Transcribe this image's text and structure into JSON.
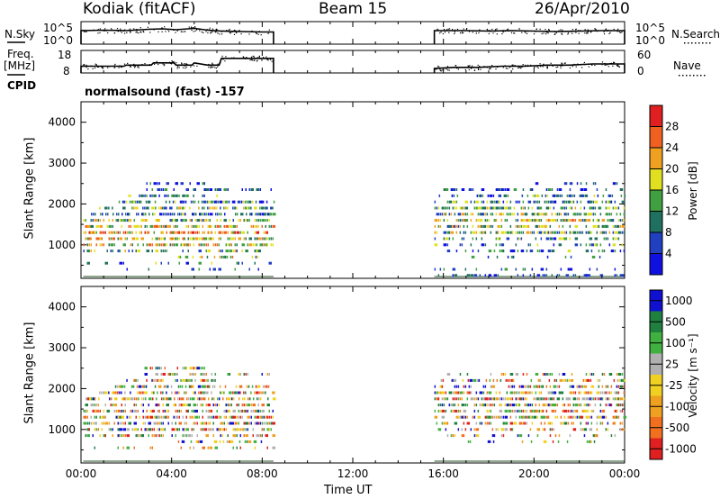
{
  "header": {
    "site": "Kodiak (fitACF)",
    "beam": "Beam 15",
    "date": "26/Apr/2010"
  },
  "labels": {
    "nsky": "N.Sky",
    "nsearch": "N.Search",
    "freq": "Freq.",
    "freq_unit": "[MHz]",
    "nave": "Nave",
    "cpid": "CPID",
    "cpid_value": "normalsound (fast) -157",
    "slant_range_power": "Slant Range [km]",
    "slant_range_velocity": "Slant Range [km]",
    "xlabel": "Time UT",
    "power_cbar_title": "Power [dB]",
    "velocity_cbar_title": "Velocity [m s⁻¹]"
  },
  "ticks": {
    "noise_left": [
      "10^5",
      "10^0"
    ],
    "noise_right": [
      "10^5",
      "10^0"
    ],
    "freq_left": [
      "18",
      "8"
    ],
    "nave_right": [
      "60",
      "0"
    ],
    "range": [
      "1000",
      "2000",
      "3000",
      "4000"
    ],
    "time": [
      "00:00",
      "04:00",
      "08:00",
      "12:00",
      "16:00",
      "20:00",
      "00:00"
    ]
  },
  "chart_data": [
    {
      "type": "line",
      "panel": "noise",
      "series": [
        {
          "name": "N.Sky",
          "x_hours": [
            0,
            1,
            2,
            3,
            3.6,
            4.2,
            5.0,
            5.6,
            6.2,
            7.0,
            8.0,
            8.5
          ],
          "values_log10": [
            3.0,
            3.1,
            3.0,
            3.3,
            3.4,
            3.2,
            3.5,
            3.1,
            2.9,
            2.8,
            2.7,
            2.7
          ]
        },
        {
          "name": "N.Sky",
          "x_hours": [
            15.6,
            17,
            18,
            19,
            20,
            21,
            22,
            23,
            24
          ],
          "values_log10": [
            3.0,
            3.0,
            2.9,
            3.0,
            2.9,
            2.8,
            2.9,
            3.0,
            3.0
          ]
        }
      ],
      "ylim": [
        0,
        5
      ],
      "gap_hours": [
        8.5,
        15.6
      ]
    },
    {
      "type": "line",
      "panel": "frequency",
      "series": [
        {
          "name": "Freq.",
          "x_hours": [
            0,
            1,
            1.9,
            2.0,
            3.1,
            3.2,
            4.1,
            4.2,
            4.9,
            5.0,
            5.6,
            6.1,
            6.2,
            8.5
          ],
          "values_mhz": [
            11,
            11,
            11,
            11.5,
            11.5,
            12.5,
            12.5,
            11.5,
            11.5,
            12.5,
            11.5,
            11.5,
            14.5,
            14.5
          ]
        },
        {
          "name": "Freq.",
          "x_hours": [
            15.6,
            16.5,
            17.5,
            18.6,
            19.6,
            20.6,
            21.6,
            22.6,
            24
          ],
          "values_mhz": [
            10,
            10.5,
            10.5,
            11,
            11,
            11.5,
            11.5,
            12,
            12
          ]
        }
      ],
      "ylim": [
        8,
        18
      ],
      "gap_hours": [
        8.5,
        15.6
      ]
    },
    {
      "type": "heatmap",
      "panel": "power",
      "title": "Power [dB]",
      "xlabel": "Time UT",
      "ylabel": "Slant Range [km]",
      "xlim_hours": [
        0,
        24
      ],
      "ylim_km": [
        180,
        4500
      ],
      "colorbar": {
        "ticks": [
          4,
          8,
          12,
          16,
          20,
          24,
          28
        ],
        "range": [
          0,
          30
        ]
      },
      "data_intervals_hours": [
        [
          0.1,
          8.5
        ],
        [
          15.6,
          24
        ]
      ],
      "range_bands_km": [
        {
          "range": 2500,
          "start": 2.8,
          "end": 5.5,
          "density": 0.35,
          "level": 0.15
        },
        {
          "range": 2350,
          "start": 2.8,
          "end": 8.5,
          "density": 0.3,
          "level": 0.15
        },
        {
          "range": 2200,
          "start": 2.0,
          "end": 6.0,
          "density": 0.45,
          "level": 0.3
        },
        {
          "range": 2050,
          "start": 1.5,
          "end": 8.5,
          "density": 0.45,
          "level": 0.3
        },
        {
          "range": 1900,
          "start": 0.8,
          "end": 8.5,
          "density": 0.5,
          "level": 0.45
        },
        {
          "range": 1750,
          "start": 0.2,
          "end": 8.5,
          "density": 0.6,
          "level": 0.25
        },
        {
          "range": 1600,
          "start": 0.1,
          "end": 8.5,
          "density": 0.6,
          "level": 0.45
        },
        {
          "range": 1450,
          "start": 0.1,
          "end": 8.5,
          "density": 0.65,
          "level": 0.55
        },
        {
          "range": 1300,
          "start": 0.1,
          "end": 8.5,
          "density": 0.7,
          "level": 0.7
        },
        {
          "range": 1150,
          "start": 0.1,
          "end": 8.5,
          "density": 0.6,
          "level": 0.55
        },
        {
          "range": 1000,
          "start": 0.1,
          "end": 8.5,
          "density": 0.55,
          "level": 0.6
        },
        {
          "range": 850,
          "start": 0.1,
          "end": 8.5,
          "density": 0.45,
          "level": 0.4
        },
        {
          "range": 700,
          "start": 4.2,
          "end": 8.0,
          "density": 0.3,
          "level": 0.5
        },
        {
          "range": 550,
          "start": 0.1,
          "end": 8.5,
          "density": 0.15,
          "level": 0.3
        },
        {
          "range": 400,
          "start": 0.1,
          "end": 8.5,
          "density": 0.12,
          "level": 0.2
        },
        {
          "range": 2500,
          "start": 19.5,
          "end": 23.8,
          "density": 0.2,
          "level": 0.15
        },
        {
          "range": 2350,
          "start": 16.0,
          "end": 24.0,
          "density": 0.3,
          "level": 0.2
        },
        {
          "range": 2200,
          "start": 15.8,
          "end": 24.0,
          "density": 0.4,
          "level": 0.3
        },
        {
          "range": 2050,
          "start": 15.6,
          "end": 24.0,
          "density": 0.5,
          "level": 0.35
        },
        {
          "range": 1900,
          "start": 15.6,
          "end": 24.0,
          "density": 0.6,
          "level": 0.4
        },
        {
          "range": 1750,
          "start": 15.6,
          "end": 24.0,
          "density": 0.6,
          "level": 0.45
        },
        {
          "range": 1600,
          "start": 15.6,
          "end": 24.0,
          "density": 0.65,
          "level": 0.5
        },
        {
          "range": 1450,
          "start": 15.6,
          "end": 24.0,
          "density": 0.6,
          "level": 0.5
        },
        {
          "range": 1300,
          "start": 15.6,
          "end": 24.0,
          "density": 0.55,
          "level": 0.45
        },
        {
          "range": 1150,
          "start": 15.6,
          "end": 24.0,
          "density": 0.4,
          "level": 0.35
        },
        {
          "range": 1000,
          "start": 15.6,
          "end": 24.0,
          "density": 0.3,
          "level": 0.3
        },
        {
          "range": 850,
          "start": 16.0,
          "end": 24.0,
          "density": 0.2,
          "level": 0.25
        },
        {
          "range": 700,
          "start": 17.0,
          "end": 23.0,
          "density": 0.15,
          "level": 0.2
        },
        {
          "range": 400,
          "start": 15.6,
          "end": 24.0,
          "density": 0.15,
          "level": 0.2
        },
        {
          "range": 250,
          "start": 15.6,
          "end": 24.0,
          "density": 0.35,
          "level": 0.1
        }
      ]
    },
    {
      "type": "heatmap",
      "panel": "velocity",
      "title": "Velocity [m s⁻¹]",
      "xlabel": "Time UT",
      "ylabel": "Slant Range [km]",
      "xlim_hours": [
        0,
        24
      ],
      "ylim_km": [
        180,
        4500
      ],
      "colorbar": {
        "ticks": [
          1000,
          500,
          100,
          25,
          -25,
          -100,
          -500,
          -1000
        ]
      },
      "data_intervals_hours": [
        [
          0.1,
          8.5
        ],
        [
          15.6,
          24
        ]
      ],
      "range_bands_km": [
        {
          "range": 2500,
          "start": 2.8,
          "end": 5.5,
          "density": 0.35
        },
        {
          "range": 2350,
          "start": 2.8,
          "end": 8.5,
          "density": 0.3
        },
        {
          "range": 2200,
          "start": 2.0,
          "end": 6.0,
          "density": 0.45
        },
        {
          "range": 2050,
          "start": 1.5,
          "end": 8.5,
          "density": 0.45
        },
        {
          "range": 1900,
          "start": 0.8,
          "end": 8.5,
          "density": 0.5
        },
        {
          "range": 1750,
          "start": 0.2,
          "end": 8.5,
          "density": 0.6
        },
        {
          "range": 1600,
          "start": 0.1,
          "end": 8.5,
          "density": 0.6
        },
        {
          "range": 1450,
          "start": 0.1,
          "end": 8.5,
          "density": 0.65
        },
        {
          "range": 1300,
          "start": 0.1,
          "end": 8.5,
          "density": 0.7
        },
        {
          "range": 1150,
          "start": 0.1,
          "end": 8.5,
          "density": 0.6
        },
        {
          "range": 1000,
          "start": 0.1,
          "end": 8.5,
          "density": 0.55
        },
        {
          "range": 850,
          "start": 0.1,
          "end": 8.5,
          "density": 0.45
        },
        {
          "range": 700,
          "start": 4.2,
          "end": 8.0,
          "density": 0.3
        },
        {
          "range": 550,
          "start": 0.1,
          "end": 8.5,
          "density": 0.15
        },
        {
          "range": 2350,
          "start": 16.0,
          "end": 24.0,
          "density": 0.3
        },
        {
          "range": 2200,
          "start": 15.8,
          "end": 24.0,
          "density": 0.4
        },
        {
          "range": 2050,
          "start": 15.6,
          "end": 24.0,
          "density": 0.5
        },
        {
          "range": 1900,
          "start": 15.6,
          "end": 24.0,
          "density": 0.6
        },
        {
          "range": 1750,
          "start": 15.6,
          "end": 24.0,
          "density": 0.6
        },
        {
          "range": 1600,
          "start": 15.6,
          "end": 24.0,
          "density": 0.65
        },
        {
          "range": 1450,
          "start": 15.6,
          "end": 24.0,
          "density": 0.6
        },
        {
          "range": 1300,
          "start": 15.6,
          "end": 24.0,
          "density": 0.55
        },
        {
          "range": 1150,
          "start": 15.6,
          "end": 24.0,
          "density": 0.4
        },
        {
          "range": 1000,
          "start": 15.6,
          "end": 24.0,
          "density": 0.3
        },
        {
          "range": 850,
          "start": 16.0,
          "end": 24.0,
          "density": 0.2
        },
        {
          "range": 700,
          "start": 17.0,
          "end": 23.0,
          "density": 0.15
        }
      ]
    }
  ],
  "colors": {
    "power_scale": [
      "#1010e0",
      "#2040c0",
      "#207060",
      "#40a040",
      "#e0e020",
      "#f0a020",
      "#f06020",
      "#e02020"
    ],
    "velocity_scale": [
      "#1010d0",
      "#208040",
      "#40b040",
      "#b0b0b0",
      "#f0d020",
      "#f0a020",
      "#f07020",
      "#e02020"
    ]
  }
}
